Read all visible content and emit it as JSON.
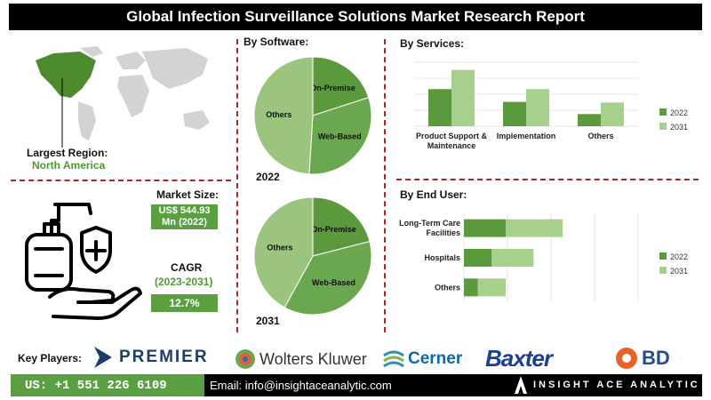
{
  "title": "Global Infection Surveillance Solutions Market Research Report",
  "region": {
    "label": "Largest Region:",
    "value": "North America"
  },
  "market_size": {
    "label": "Market Size:",
    "value_line1": "US$ 544.93",
    "value_line2": "Mn (2022)"
  },
  "cagr": {
    "label": "CAGR",
    "period": "(2023-2031)",
    "value": "12.7%"
  },
  "key_players": {
    "label": "Key Players:",
    "names": [
      "PREMIER",
      "Wolters Kluwer",
      "Cerner",
      "Baxter",
      "BD"
    ]
  },
  "footer": {
    "phone": "US: +1 551 226 6109",
    "email": "Email: info@insightaceanalytic.com",
    "brand": "INSIGHT ACE ANALYTIC"
  },
  "colors": {
    "dark_green": "#5a9a3c",
    "light_green": "#a8d08d",
    "mid_green": "#6aa84f",
    "divider": "#b22222"
  },
  "chart_data": [
    {
      "type": "pie",
      "title": "By Software:",
      "year_label": "2022",
      "labels": [
        "On-Premise",
        "Web-Based",
        "Others"
      ],
      "values": [
        20,
        31,
        49
      ],
      "colors": [
        "#5a9a3c",
        "#6aa84f",
        "#9bc57f"
      ]
    },
    {
      "type": "pie",
      "year_label": "2031",
      "labels": [
        "On-Premise",
        "Web-Based",
        "Others"
      ],
      "values": [
        21,
        37,
        42
      ],
      "colors": [
        "#5a9a3c",
        "#6aa84f",
        "#9bc57f"
      ]
    },
    {
      "type": "bar",
      "title": "By Services:",
      "categories": [
        "Product Support & Maintenance",
        "Implementation",
        "Others"
      ],
      "category_lines": [
        [
          "Product Support &",
          "Maintenance"
        ],
        [
          "Implementation"
        ],
        [
          "Others"
        ]
      ],
      "series": [
        {
          "name": "2022",
          "values": [
            0.58,
            0.38,
            0.19
          ],
          "color": "#5a9a3c"
        },
        {
          "name": "2031",
          "values": [
            0.88,
            0.58,
            0.37
          ],
          "color": "#a8d08d"
        }
      ],
      "ylim": [
        0,
        1
      ],
      "legend": "right"
    },
    {
      "type": "bar",
      "orientation": "horizontal",
      "stacked": true,
      "title": "By End User:",
      "categories": [
        "Long-Term Care Facilities",
        "Hospitals",
        "Others"
      ],
      "category_lines": [
        [
          "Long-Term Care",
          "Facilities"
        ],
        [
          "Hospitals"
        ],
        [
          "Others"
        ]
      ],
      "series": [
        {
          "name": "2022",
          "values": [
            0.36,
            0.24,
            0.12
          ],
          "color": "#5a9a3c"
        },
        {
          "name": "2031",
          "values": [
            0.49,
            0.36,
            0.24
          ],
          "color": "#a8d08d"
        }
      ],
      "xlim": [
        0,
        1.5
      ],
      "legend": "right"
    }
  ]
}
